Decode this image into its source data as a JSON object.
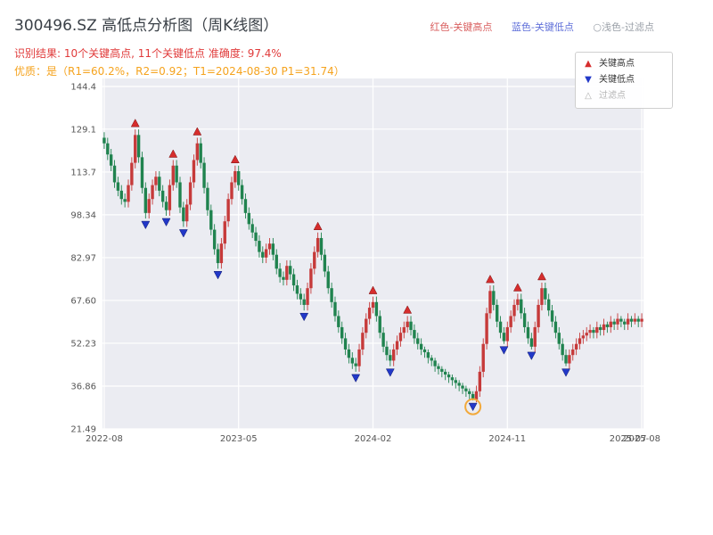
{
  "header": {
    "title": "300496.SZ 高低点分析图（周K线图）",
    "legend_top": {
      "high": "红色-关键高点",
      "low": "蓝色-关键低点",
      "filtered": "○浅色-过滤点"
    },
    "result_line": "识别结果: 10个关键高点, 11个关键低点 准确度: 97.4%",
    "quality_line": "优质：是（R1=60.2%，R2=0.92；T1=2024-08-30 P1=31.74）"
  },
  "legend_box": {
    "items": [
      {
        "label": "关键高点",
        "type": "high"
      },
      {
        "label": "关键低点",
        "type": "low"
      },
      {
        "label": "过滤点",
        "type": "filtered"
      }
    ]
  },
  "colors": {
    "up": "#c63a3a",
    "down": "#20834f",
    "marker_high": "#d62d2d",
    "marker_low": "#2238c8",
    "filtered_ring": "#f2a93b",
    "grid": "#ffffff",
    "plot_bg": "#ebecf2",
    "tick": "#555555",
    "title": "#3a4047",
    "result": "#e03a3a",
    "quality": "#f5a31e"
  },
  "chart_data": {
    "type": "candlestick",
    "title": "300496.SZ 高低点分析图（周K线图）",
    "frequency": "weekly",
    "ylim": [
      21.49,
      144.4
    ],
    "y_ticks": [
      "144.4",
      "129.1",
      "113.7",
      "98.34",
      "82.97",
      "67.60",
      "52.23",
      "36.86",
      "21.49"
    ],
    "x_ticks": [
      {
        "label": "2022-08",
        "index": 0,
        "gridline": true
      },
      {
        "label": "2023-05",
        "index": 39,
        "gridline": true
      },
      {
        "label": "2024-02",
        "index": 78,
        "gridline": true
      },
      {
        "label": "2024-11",
        "index": 117,
        "gridline": true
      },
      {
        "label": "2025-07",
        "index": 152,
        "gridline": false
      },
      {
        "label": "2025-08",
        "index": 156,
        "gridline": true
      }
    ],
    "candles": [
      [
        126,
        128,
        122,
        124
      ],
      [
        124,
        126,
        118,
        120
      ],
      [
        120,
        122,
        114,
        116
      ],
      [
        116,
        118,
        108,
        110
      ],
      [
        110,
        112,
        105,
        107
      ],
      [
        107,
        109,
        102,
        104
      ],
      [
        104,
        106,
        101,
        103
      ],
      [
        103,
        111,
        101,
        109
      ],
      [
        109,
        119,
        107,
        117
      ],
      [
        117,
        129,
        115,
        127
      ],
      [
        127,
        129,
        117,
        119
      ],
      [
        119,
        121,
        106,
        108
      ],
      [
        108,
        110,
        97,
        99
      ],
      [
        99,
        106,
        97,
        104
      ],
      [
        104,
        111,
        102,
        109
      ],
      [
        109,
        114,
        107,
        112
      ],
      [
        112,
        114,
        105,
        107
      ],
      [
        107,
        109,
        101,
        103
      ],
      [
        103,
        105,
        98,
        100
      ],
      [
        100,
        111,
        98,
        109
      ],
      [
        109,
        118,
        107,
        116
      ],
      [
        116,
        118,
        108,
        110
      ],
      [
        110,
        112,
        99,
        101
      ],
      [
        101,
        103,
        94,
        96
      ],
      [
        96,
        104,
        94,
        102
      ],
      [
        102,
        112,
        100,
        110
      ],
      [
        110,
        120,
        108,
        118
      ],
      [
        118,
        126,
        116,
        124
      ],
      [
        124,
        126,
        115,
        117
      ],
      [
        117,
        119,
        106,
        108
      ],
      [
        108,
        110,
        98,
        100
      ],
      [
        100,
        102,
        91,
        93
      ],
      [
        93,
        95,
        84,
        86
      ],
      [
        86,
        88,
        79,
        81
      ],
      [
        81,
        90,
        79,
        88
      ],
      [
        88,
        98,
        86,
        96
      ],
      [
        96,
        106,
        94,
        104
      ],
      [
        104,
        112,
        102,
        110
      ],
      [
        110,
        116,
        108,
        114
      ],
      [
        114,
        116,
        107,
        109
      ],
      [
        109,
        111,
        102,
        104
      ],
      [
        104,
        106,
        97,
        99
      ],
      [
        99,
        101,
        93,
        95
      ],
      [
        95,
        97,
        90,
        92
      ],
      [
        92,
        94,
        87,
        89
      ],
      [
        89,
        91,
        83,
        85
      ],
      [
        85,
        87,
        81,
        83
      ],
      [
        83,
        88,
        81,
        86
      ],
      [
        86,
        90,
        84,
        88
      ],
      [
        88,
        90,
        82,
        84
      ],
      [
        84,
        86,
        77,
        79
      ],
      [
        79,
        81,
        74,
        76
      ],
      [
        76,
        78,
        73,
        75
      ],
      [
        75,
        82,
        73,
        80
      ],
      [
        80,
        82,
        75,
        77
      ],
      [
        77,
        79,
        71,
        73
      ],
      [
        73,
        75,
        68,
        70
      ],
      [
        70,
        72,
        66,
        68
      ],
      [
        68,
        70,
        64,
        66
      ],
      [
        66,
        74,
        64,
        72
      ],
      [
        72,
        81,
        70,
        79
      ],
      [
        79,
        87,
        77,
        85
      ],
      [
        85,
        92,
        83,
        90
      ],
      [
        90,
        92,
        82,
        84
      ],
      [
        84,
        86,
        76,
        78
      ],
      [
        78,
        80,
        70,
        72
      ],
      [
        72,
        74,
        65,
        67
      ],
      [
        67,
        69,
        60,
        62
      ],
      [
        62,
        64,
        56,
        58
      ],
      [
        58,
        60,
        52,
        54
      ],
      [
        54,
        56,
        48,
        50
      ],
      [
        50,
        52,
        45,
        47
      ],
      [
        47,
        49,
        43,
        45
      ],
      [
        45,
        47,
        42,
        44
      ],
      [
        44,
        52,
        42,
        50
      ],
      [
        50,
        58,
        48,
        56
      ],
      [
        56,
        63,
        54,
        61
      ],
      [
        61,
        67,
        59,
        65
      ],
      [
        65,
        69,
        63,
        67
      ],
      [
        67,
        69,
        60,
        62
      ],
      [
        62,
        64,
        54,
        56
      ],
      [
        56,
        58,
        49,
        51
      ],
      [
        51,
        53,
        46,
        48
      ],
      [
        48,
        50,
        44,
        46
      ],
      [
        46,
        52,
        44,
        50
      ],
      [
        50,
        55,
        48,
        53
      ],
      [
        53,
        58,
        51,
        56
      ],
      [
        56,
        60,
        54,
        58
      ],
      [
        58,
        62,
        56,
        60
      ],
      [
        60,
        62,
        55,
        57
      ],
      [
        57,
        59,
        52,
        54
      ],
      [
        54,
        56,
        50,
        52
      ],
      [
        52,
        54,
        48,
        50
      ],
      [
        50,
        51,
        47,
        49
      ],
      [
        49,
        50,
        45,
        47
      ],
      [
        47,
        48,
        44,
        46
      ],
      [
        46,
        47,
        42,
        44
      ],
      [
        44,
        45,
        41,
        43
      ],
      [
        43,
        44,
        40,
        42
      ],
      [
        42,
        43,
        39,
        41
      ],
      [
        41,
        42,
        38,
        40
      ],
      [
        40,
        41,
        37,
        39
      ],
      [
        39,
        40,
        36,
        38
      ],
      [
        38,
        39,
        35,
        37
      ],
      [
        37,
        38,
        34,
        36
      ],
      [
        36,
        37,
        33,
        35
      ],
      [
        35,
        36,
        32,
        34
      ],
      [
        34,
        35,
        31.7,
        32
      ],
      [
        32,
        37,
        31,
        35
      ],
      [
        35,
        44,
        33,
        42
      ],
      [
        42,
        54,
        40,
        52
      ],
      [
        52,
        65,
        50,
        63
      ],
      [
        63,
        73,
        61,
        71
      ],
      [
        71,
        73,
        64,
        66
      ],
      [
        66,
        68,
        58,
        60
      ],
      [
        60,
        62,
        54,
        56
      ],
      [
        56,
        58,
        52,
        53
      ],
      [
        53,
        60,
        51,
        58
      ],
      [
        58,
        64,
        56,
        62
      ],
      [
        62,
        68,
        60,
        66
      ],
      [
        66,
        70,
        64,
        68
      ],
      [
        68,
        70,
        61,
        63
      ],
      [
        63,
        65,
        56,
        58
      ],
      [
        58,
        60,
        52,
        54
      ],
      [
        54,
        56,
        50,
        51
      ],
      [
        51,
        60,
        49,
        58
      ],
      [
        58,
        68,
        56,
        66
      ],
      [
        66,
        74,
        64,
        72
      ],
      [
        72,
        74,
        66,
        68
      ],
      [
        68,
        70,
        62,
        64
      ],
      [
        64,
        66,
        58,
        60
      ],
      [
        60,
        62,
        54,
        56
      ],
      [
        56,
        58,
        50,
        52
      ],
      [
        52,
        54,
        46,
        48
      ],
      [
        48,
        50,
        44,
        45
      ],
      [
        45,
        50,
        43,
        48
      ],
      [
        48,
        52,
        46,
        50
      ],
      [
        50,
        54,
        48,
        52
      ],
      [
        52,
        56,
        50,
        54
      ],
      [
        54,
        57,
        52,
        55
      ],
      [
        55,
        58,
        53,
        56
      ],
      [
        56,
        59,
        54,
        57
      ],
      [
        57,
        58,
        54,
        56
      ],
      [
        56,
        60,
        54,
        58
      ],
      [
        58,
        59,
        55,
        57
      ],
      [
        57,
        61,
        55,
        59
      ],
      [
        59,
        60,
        56,
        58
      ],
      [
        58,
        62,
        56,
        60
      ],
      [
        60,
        61,
        57,
        59
      ],
      [
        59,
        63,
        57,
        61
      ],
      [
        61,
        62,
        58,
        60
      ],
      [
        60,
        61,
        57,
        59
      ],
      [
        59,
        63,
        57,
        61
      ],
      [
        61,
        62,
        58,
        60
      ],
      [
        60,
        63,
        59,
        61
      ],
      [
        61,
        62,
        58,
        60
      ],
      [
        60,
        63,
        58,
        61
      ]
    ],
    "key_high_indices": [
      9,
      20,
      27,
      38,
      62,
      78,
      88,
      112,
      120,
      127
    ],
    "key_low_indices": [
      12,
      18,
      23,
      33,
      58,
      73,
      83,
      107,
      116,
      124,
      134
    ],
    "filtered": [
      {
        "index": 107,
        "price": 31.74,
        "date": "2024-08-30"
      }
    ],
    "key_high_count": 10,
    "key_low_count": 11,
    "accuracy": "97.4%"
  }
}
